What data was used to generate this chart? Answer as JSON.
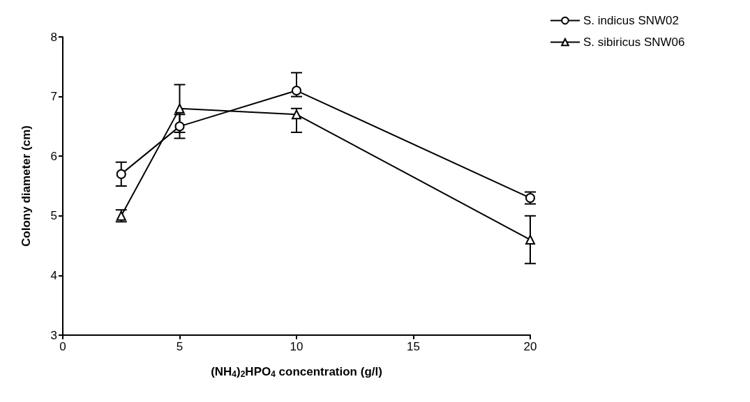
{
  "chart_data": {
    "type": "line",
    "xlabel": "(NH$_{4}$)$_{2}$HPO$_{4}$ concentration (g/l)",
    "ylabel": "Colony diameter (cm)",
    "x": [
      2.5,
      5,
      10,
      20
    ],
    "series": [
      {
        "name": "S. indicus SNW02",
        "color": "#000000",
        "marker": "circle",
        "values": [
          5.7,
          6.5,
          7.1,
          5.3
        ],
        "errors": [
          0.2,
          0.2,
          [
            7.0,
            7.4
          ],
          0.1
        ]
      },
      {
        "name": "S. sibiricus SNW06",
        "color": "#000000",
        "marker": "triangle",
        "values": [
          5.0,
          6.8,
          6.7,
          4.6
        ],
        "errors": [
          0.1,
          0.4,
          [
            6.4,
            6.8
          ],
          0.4
        ]
      }
    ],
    "xlim": [
      0,
      20
    ],
    "xticks": [
      0,
      5,
      10,
      15,
      20
    ],
    "ylim": [
      3,
      8
    ],
    "yticks": [
      3,
      4,
      5,
      6,
      7,
      8
    ],
    "grid": false,
    "legend": "top right",
    "line_style": "solid"
  }
}
